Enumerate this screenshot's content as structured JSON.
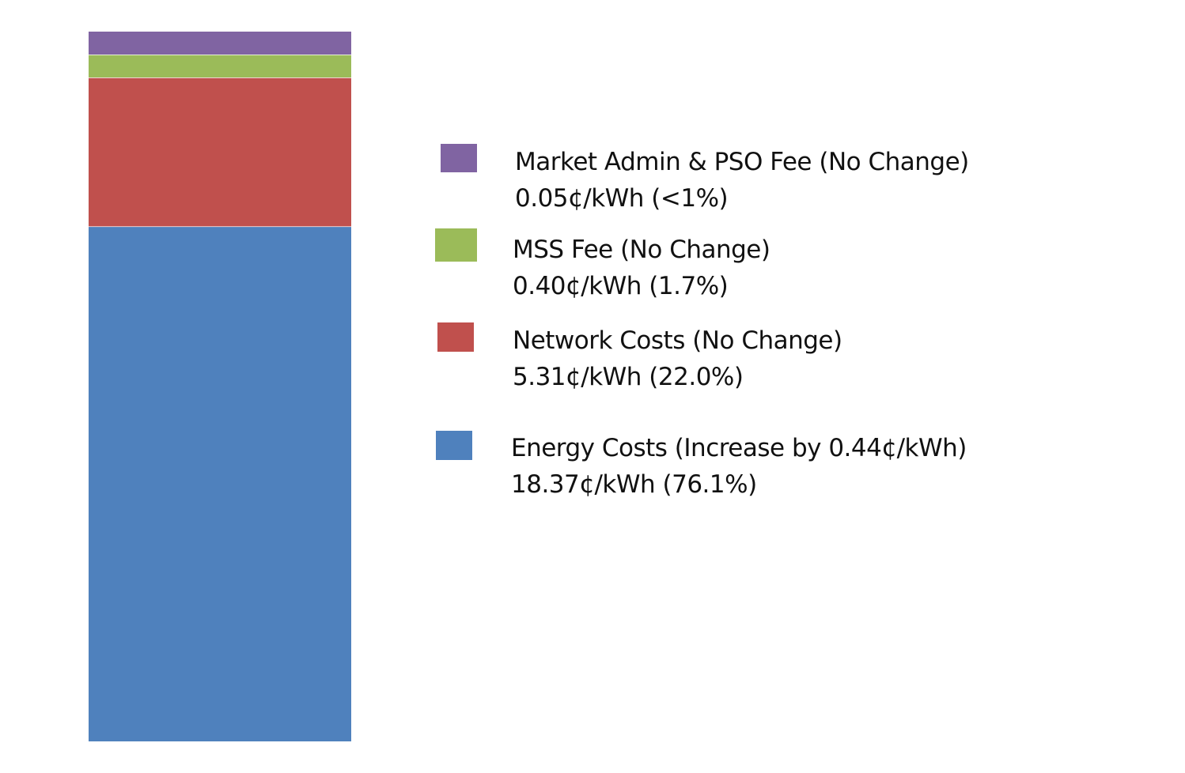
{
  "chart_data": {
    "type": "bar",
    "stacked": true,
    "unit": "¢/kWh",
    "categories": [
      ""
    ],
    "series": [
      {
        "name": "Energy Costs (Increase by 0.44¢/kWh)",
        "values": [
          18.37
        ],
        "value_label": "18.37¢/kWh (76.1%)",
        "color": "#4f81bd"
      },
      {
        "name": "Network Costs (No Change)",
        "values": [
          5.31
        ],
        "value_label": "5.31¢/kWh (22.0%)",
        "color": "#c0504d"
      },
      {
        "name": "MSS Fee (No Change)",
        "values": [
          0.4
        ],
        "value_label": "0.40¢/kWh (1.7%)",
        "color": "#9bbb59"
      },
      {
        "name": "Market Admin & PSO Fee (No Change)",
        "values": [
          0.05
        ],
        "value_label": "0.05¢/kWh (<1%)",
        "color": "#8064a2"
      }
    ],
    "legend_position": "right",
    "legend_order": [
      3,
      2,
      1,
      0
    ],
    "grid": false,
    "axes_visible": false
  }
}
